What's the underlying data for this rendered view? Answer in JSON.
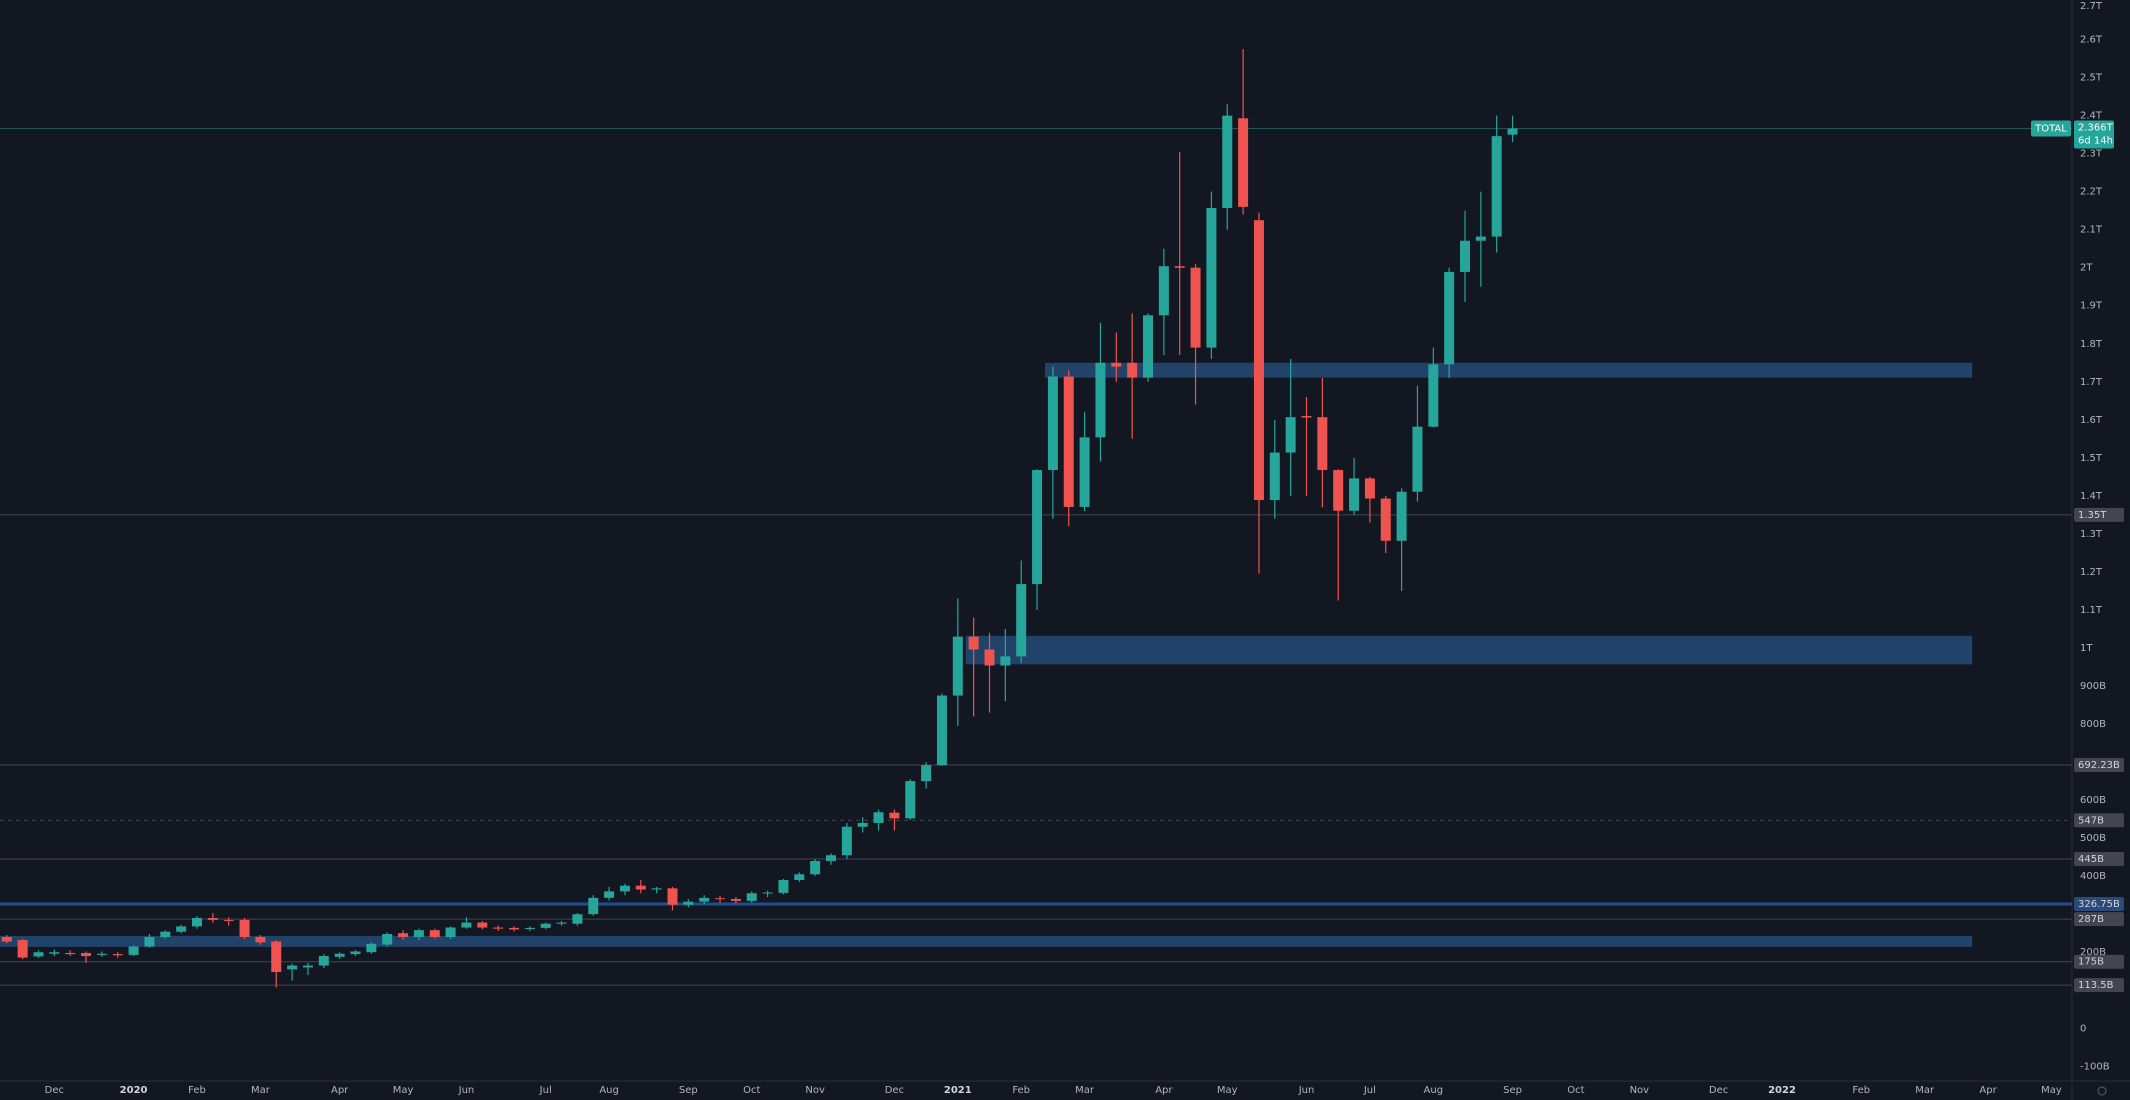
{
  "chart_data": {
    "type": "candlestick",
    "symbol": "TOTAL",
    "last_price": {
      "value": 2366,
      "label": "2.366T"
    },
    "countdown": "6d 14h",
    "up_color": "#26a69a",
    "down_color": "#ef5350",
    "grid": false,
    "categories": [
      null,
      null,
      null,
      "Dec",
      null,
      null,
      null,
      null,
      "2020",
      null,
      null,
      null,
      "Feb",
      null,
      null,
      null,
      "Mar",
      null,
      null,
      null,
      null,
      "Apr",
      null,
      null,
      null,
      "May",
      null,
      null,
      null,
      "Jun",
      null,
      null,
      null,
      null,
      "Jul",
      null,
      null,
      null,
      "Aug",
      null,
      null,
      null,
      null,
      "Sep",
      null,
      null,
      null,
      "Oct",
      null,
      null,
      null,
      "Nov",
      null,
      null,
      null,
      null,
      "Dec",
      null,
      null,
      null,
      "2021",
      null,
      null,
      null,
      "Feb",
      null,
      null,
      null,
      "Mar",
      null,
      null,
      null,
      null,
      "Apr",
      null,
      null,
      null,
      "May",
      null,
      null,
      null,
      null,
      "Jun",
      null,
      null,
      null,
      "Jul",
      null,
      null,
      null,
      "Aug",
      null,
      null,
      null,
      null,
      "Sep",
      null,
      null,
      null,
      "Oct",
      null,
      null,
      null,
      "Nov",
      null,
      null,
      null,
      null,
      "Dec",
      null,
      null,
      null,
      "2022",
      null,
      null,
      null,
      null,
      "Feb",
      null,
      null,
      null,
      "Mar",
      null,
      null,
      null,
      "Apr",
      null,
      null,
      null,
      "May"
    ],
    "open": [
      240,
      232,
      189,
      196,
      198,
      198,
      193,
      195,
      193,
      215,
      240,
      254,
      268,
      290,
      285,
      285,
      240,
      228,
      155,
      160,
      165,
      188,
      195,
      200,
      220,
      250,
      240,
      258,
      240,
      265,
      278,
      265,
      264,
      261,
      264,
      275,
      275,
      300,
      343,
      360,
      375,
      365,
      368,
      325,
      333,
      342,
      340,
      335,
      355,
      356,
      390,
      405,
      440,
      455,
      530,
      540,
      567,
      552,
      650,
      692,
      875,
      1030,
      996,
      954,
      978,
      1168,
      1468,
      1714,
      1371,
      1554,
      1750,
      1750,
      1711,
      1875,
      2004,
      2000,
      1790,
      2157,
      2393,
      2125,
      1389,
      1514,
      1610,
      1607,
      1468,
      1361,
      1446,
      1393,
      1282,
      1411,
      1582,
      1746,
      1989,
      2071,
      2082,
      2350,
      null,
      null,
      null,
      null,
      null,
      null,
      null,
      null,
      null,
      null,
      null,
      null,
      null,
      null,
      null,
      null,
      null,
      null,
      null,
      null,
      null,
      null,
      null,
      null,
      null,
      null,
      null,
      null,
      null,
      null,
      null,
      null,
      null,
      null
    ],
    "high": [
      245,
      235,
      205,
      207,
      205,
      202,
      202,
      200,
      218,
      248,
      258,
      272,
      295,
      303,
      292,
      290,
      245,
      232,
      170,
      172,
      195,
      200,
      206,
      226,
      252,
      258,
      262,
      262,
      268,
      292,
      282,
      270,
      268,
      268,
      278,
      282,
      303,
      350,
      372,
      380,
      390,
      372,
      372,
      340,
      350,
      348,
      345,
      360,
      362,
      393,
      410,
      445,
      460,
      540,
      555,
      575,
      575,
      655,
      700,
      880,
      1130,
      1080,
      1040,
      1050,
      1230,
      1470,
      1740,
      1730,
      1620,
      1855,
      1830,
      1880,
      1880,
      2050,
      2304,
      2010,
      2200,
      2430,
      2575,
      2145,
      1600,
      1760,
      1660,
      1710,
      1470,
      1500,
      1450,
      1400,
      1420,
      1690,
      1790,
      2000,
      2150,
      2200,
      2400,
      2400,
      null,
      null,
      null,
      null,
      null,
      null,
      null,
      null,
      null,
      null,
      null,
      null,
      null,
      null,
      null,
      null,
      null,
      null,
      null,
      null,
      null,
      null,
      null,
      null,
      null,
      null,
      null,
      null,
      null,
      null,
      null,
      null,
      null,
      null
    ],
    "low": [
      224,
      182,
      185,
      190,
      190,
      172,
      188,
      186,
      190,
      212,
      236,
      250,
      262,
      278,
      270,
      235,
      220,
      107,
      125,
      140,
      158,
      183,
      190,
      196,
      215,
      233,
      232,
      236,
      235,
      262,
      260,
      256,
      255,
      256,
      260,
      270,
      270,
      296,
      336,
      350,
      355,
      355,
      310,
      318,
      326,
      330,
      328,
      330,
      345,
      352,
      385,
      400,
      430,
      445,
      515,
      520,
      520,
      548,
      630,
      690,
      795,
      820,
      830,
      860,
      960,
      1100,
      1340,
      1320,
      1360,
      1490,
      1700,
      1550,
      1700,
      1770,
      1770,
      1640,
      1760,
      2100,
      2140,
      1196,
      1340,
      1400,
      1400,
      1370,
      1125,
      1350,
      1330,
      1250,
      1150,
      1385,
      1580,
      1710,
      1910,
      1950,
      2040,
      2330,
      null,
      null,
      null,
      null,
      null,
      null,
      null,
      null,
      null,
      null,
      null,
      null,
      null,
      null,
      null,
      null,
      null,
      null,
      null,
      null,
      null,
      null,
      null,
      null,
      null,
      null,
      null,
      null,
      null,
      null,
      null,
      null,
      null,
      null
    ],
    "close": [
      228,
      186,
      200,
      200,
      195,
      190,
      196,
      192,
      215,
      240,
      254,
      268,
      290,
      285,
      283,
      240,
      226,
      148,
      165,
      165,
      190,
      196,
      202,
      222,
      248,
      240,
      258,
      240,
      265,
      278,
      265,
      262,
      260,
      264,
      275,
      278,
      300,
      343,
      360,
      375,
      365,
      368,
      325,
      333,
      343,
      340,
      335,
      355,
      357,
      390,
      405,
      440,
      455,
      530,
      540,
      568,
      552,
      650,
      692,
      875,
      1030,
      996,
      954,
      978,
      1168,
      1468,
      1714,
      1371,
      1554,
      1750,
      1740,
      1711,
      1875,
      2004,
      2000,
      1790,
      2157,
      2400,
      2160,
      1389,
      1514,
      1607,
      1606,
      1468,
      1361,
      1446,
      1393,
      1282,
      1411,
      1582,
      1746,
      1989,
      2071,
      2082,
      2346,
      2366,
      null,
      null,
      null,
      null,
      null,
      null,
      null,
      null,
      null,
      null,
      null,
      null,
      null,
      null,
      null,
      null,
      null,
      null,
      null,
      null,
      null,
      null,
      null,
      null,
      null,
      null,
      null,
      null,
      null,
      null,
      null,
      null,
      null,
      null
    ],
    "ylim": [
      -136,
      2704
    ],
    "yticks": [
      {
        "value": 2700,
        "label": "2.7T"
      },
      {
        "value": 2600,
        "label": "2.6T"
      },
      {
        "value": 2500,
        "label": "2.5T"
      },
      {
        "value": 2400,
        "label": "2.4T"
      },
      {
        "value": 2300,
        "label": "2.3T"
      },
      {
        "value": 2200,
        "label": "2.2T"
      },
      {
        "value": 2100,
        "label": "2.1T"
      },
      {
        "value": 2000,
        "label": "2T"
      },
      {
        "value": 1900,
        "label": "1.9T"
      },
      {
        "value": 1800,
        "label": "1.8T"
      },
      {
        "value": 1700,
        "label": "1.7T"
      },
      {
        "value": 1600,
        "label": "1.6T"
      },
      {
        "value": 1500,
        "label": "1.5T"
      },
      {
        "value": 1400,
        "label": "1.4T"
      },
      {
        "value": 1300,
        "label": "1.3T"
      },
      {
        "value": 1200,
        "label": "1.2T"
      },
      {
        "value": 1100,
        "label": "1.1T"
      },
      {
        "value": 1000,
        "label": "1T"
      },
      {
        "value": 900,
        "label": "900B"
      },
      {
        "value": 800,
        "label": "800B"
      },
      {
        "value": 600,
        "label": "600B"
      },
      {
        "value": 500,
        "label": "500B"
      },
      {
        "value": 400,
        "label": "400B"
      },
      {
        "value": 200,
        "label": "200B"
      },
      0,
      {
        "value": -100,
        "label": "-100B"
      }
    ],
    "levels": [
      {
        "value": 1350,
        "label": "1.35T",
        "color": "#434651",
        "style": "solid"
      },
      {
        "value": 692.23,
        "label": "692.23B",
        "color": "#434651",
        "style": "solid"
      },
      {
        "value": 547,
        "label": "547B",
        "color": "#434651",
        "style": "dashed"
      },
      {
        "value": 445,
        "label": "445B",
        "color": "#434651",
        "style": "solid"
      },
      {
        "value": 326.75,
        "label": "326.75B",
        "color": "#1e4f8c",
        "style": "solid"
      },
      {
        "value": 287,
        "label": "287B",
        "color": "#434651",
        "style": "solid"
      },
      {
        "value": 175,
        "label": "175B",
        "color": "#434651",
        "style": "solid"
      },
      {
        "value": 113.5,
        "label": "113.5B",
        "color": "#434651",
        "style": "solid"
      }
    ],
    "zones": [
      {
        "from": 1711,
        "to": 1750,
        "x": [
          66,
          124
        ],
        "color": "#22466e"
      },
      {
        "from": 957,
        "to": 1032,
        "x": [
          61,
          124
        ],
        "color": "#22466e"
      },
      {
        "from": 214,
        "to": 243,
        "x": [
          0,
          124
        ],
        "color": "#22466e"
      }
    ]
  }
}
